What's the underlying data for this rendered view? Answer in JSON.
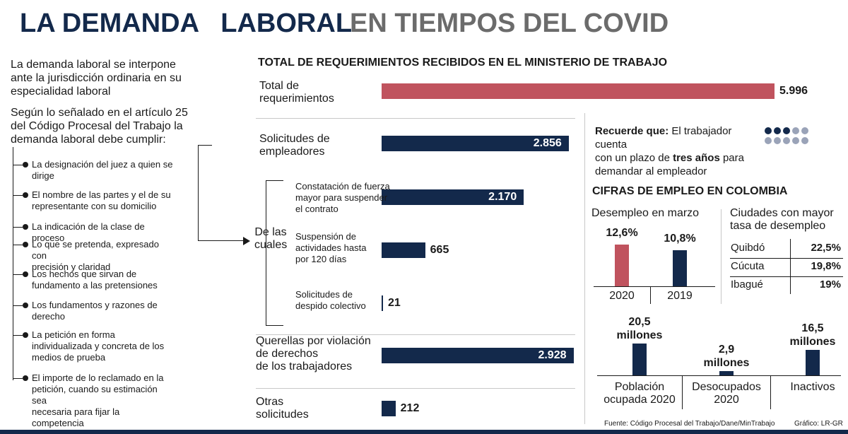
{
  "header": {
    "title_part1": "LA DEMANDA   LABORAL",
    "title_part2": "EN TIEMPOS DEL COVID"
  },
  "intro": {
    "p1_lines": [
      "La demanda laboral se interpone",
      "ante la jurisdicción ordinaria en su",
      "especialidad laboral"
    ],
    "p2_lines": [
      "Según lo señalado en el artículo 25",
      "del Código Procesal del Trabajo la",
      "demanda laboral debe cumplir:"
    ]
  },
  "requirements": [
    [
      "La designación del juez a quien se",
      "dirige"
    ],
    [
      "El nombre de las partes y el de su",
      "representante con su domicilio"
    ],
    [
      "La indicación de la clase de proceso"
    ],
    [
      "Lo que se pretenda, expresado con",
      "precisión y claridad"
    ],
    [
      "Los hechos que sirvan de",
      "fundamento a las pretensiones"
    ],
    [
      "Los fundamentos y razones de",
      "derecho"
    ],
    [
      "La petición en forma",
      "individualizada y concreta de los",
      "medios de prueba"
    ],
    [
      "El importe de lo reclamado en la",
      "petición, cuando su estimación sea",
      "necesaria para fijar la competencia"
    ]
  ],
  "de_las_cuales": [
    "De las",
    "cuales"
  ],
  "reminder": {
    "bold": "Recuerde que:",
    "text1": " El trabajador cuenta",
    "text2a": "con un plazo de ",
    "text2b": "tres años",
    "text2c": " para",
    "text3": "demandar al empleador",
    "dots_filled": 3,
    "dots_total": 10
  },
  "employment": {
    "title": "CIFRAS DE EMPLEO EN COLOMBIA",
    "unemployment_title": "Desempleo en marzo",
    "cities_title": [
      "Ciudades con mayor",
      "tasa de desempleo"
    ],
    "cities": [
      {
        "name": "Quibdó",
        "value": "22,5%"
      },
      {
        "name": "Cúcuta",
        "value": "19,8%"
      },
      {
        "name": "Ibagué",
        "value": "19%"
      }
    ]
  },
  "footer": {
    "source": "Fuente: Código Procesal del Trabajo/Dane/MinTrabajo",
    "credit": "Gráfico: LR-GR"
  },
  "colors": {
    "navy": "#13294b",
    "red": "#c0535e",
    "gray": "#6b6b6b",
    "light_dot": "#9aa3b8"
  },
  "chart_data": [
    {
      "type": "bar",
      "title": "TOTAL DE REQUERIMIENTOS RECIBIDOS EN EL MINISTERIO DE TRABAJO",
      "orientation": "horizontal",
      "categories": [
        [
          "Total de",
          "requerimientos"
        ],
        [
          "Solicitudes de",
          "empleadores"
        ],
        [
          "Constatación de fuerza",
          "mayor para suspender",
          "el contrato"
        ],
        [
          "Suspensión de",
          "actividades hasta",
          "por 120 días"
        ],
        [
          "Solicitudes de",
          "despido colectivo"
        ],
        [
          "Querellas por violación",
          "de derechos",
          "de los trabajadores"
        ],
        [
          "Otras",
          "solicitudes"
        ]
      ],
      "values": [
        5996,
        2856,
        2170,
        665,
        21,
        2928,
        212
      ],
      "value_labels": [
        "5.996",
        "2.856",
        "2.170",
        "665",
        "21",
        "2.928",
        "212"
      ],
      "xlim": [
        0,
        5996
      ]
    },
    {
      "type": "bar",
      "title": "Desempleo en marzo",
      "categories": [
        "2020",
        "2019"
      ],
      "values": [
        12.6,
        10.8
      ],
      "value_labels": [
        "12,6%",
        "10,8%"
      ],
      "ylim": [
        0,
        12.6
      ]
    },
    {
      "type": "bar",
      "categories": [
        [
          "Población",
          "ocupada 2020"
        ],
        [
          "Desocupados",
          "2020"
        ],
        [
          "Inactivos"
        ]
      ],
      "values": [
        20.5,
        2.9,
        16.5
      ],
      "value_labels": [
        [
          "20,5",
          "millones"
        ],
        [
          "2,9",
          "millones"
        ],
        [
          "16,5",
          "millones"
        ]
      ]
    }
  ]
}
